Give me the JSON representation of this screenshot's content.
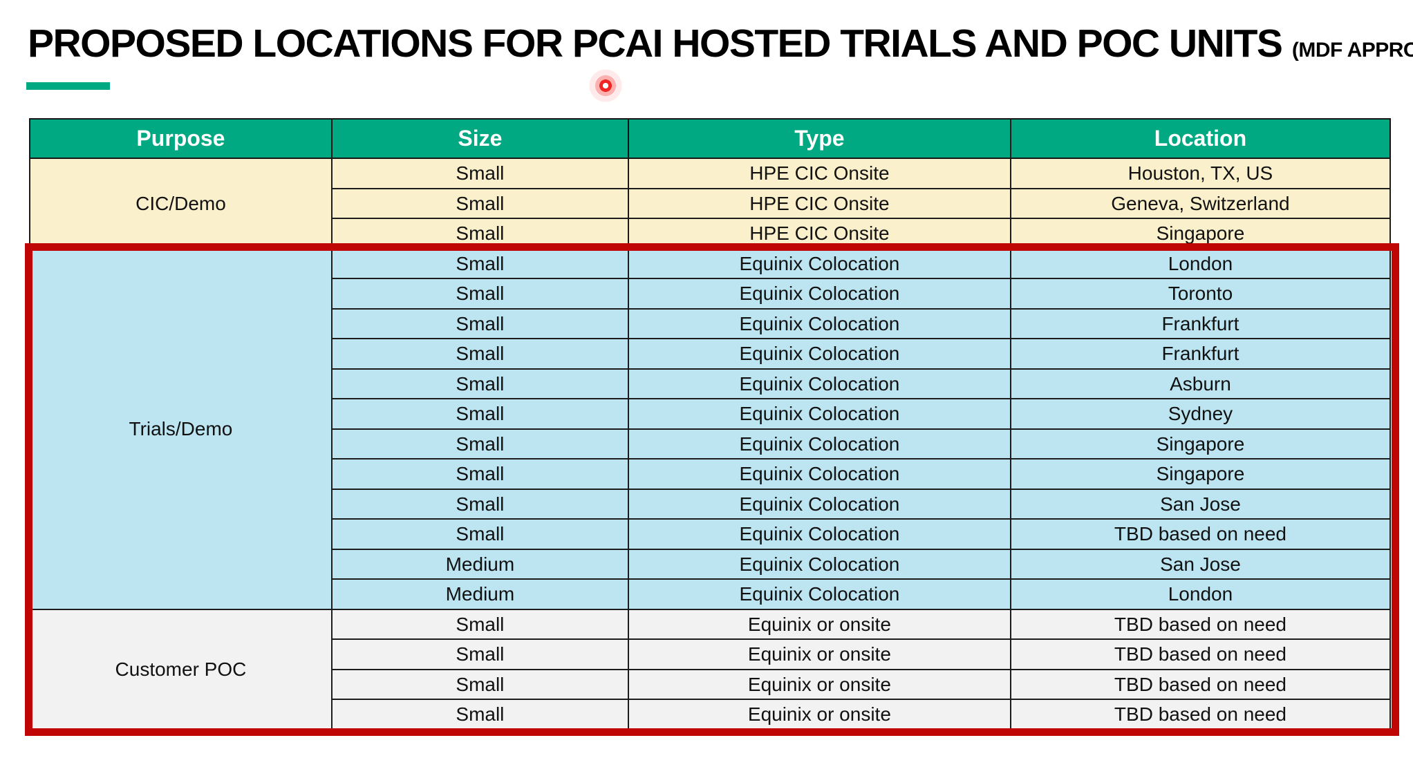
{
  "title": {
    "main": "PROPOSED LOCATIONS FOR PCAI HOSTED TRIALS AND POC UNITS",
    "suffix": "(MDF APPROVED)"
  },
  "table": {
    "headers": [
      "Purpose",
      "Size",
      "Type",
      "Location"
    ],
    "groups": [
      {
        "purpose": "CIC/Demo",
        "theme": "cream",
        "rows": [
          [
            "Small",
            "HPE CIC Onsite",
            "Houston, TX, US"
          ],
          [
            "Small",
            "HPE CIC Onsite",
            "Geneva, Switzerland"
          ],
          [
            "Small",
            "HPE CIC Onsite",
            "Singapore"
          ]
        ]
      },
      {
        "purpose": "Trials/Demo",
        "theme": "blue",
        "rows": [
          [
            "Small",
            "Equinix Colocation",
            "London"
          ],
          [
            "Small",
            "Equinix Colocation",
            "Toronto"
          ],
          [
            "Small",
            "Equinix Colocation",
            "Frankfurt"
          ],
          [
            "Small",
            "Equinix Colocation",
            "Frankfurt"
          ],
          [
            "Small",
            "Equinix Colocation",
            "Asburn"
          ],
          [
            "Small",
            "Equinix Colocation",
            "Sydney"
          ],
          [
            "Small",
            "Equinix Colocation",
            "Singapore"
          ],
          [
            "Small",
            "Equinix Colocation",
            "Singapore"
          ],
          [
            "Small",
            "Equinix Colocation",
            "San Jose"
          ],
          [
            "Small",
            "Equinix Colocation",
            "TBD based on need"
          ],
          [
            "Medium",
            "Equinix Colocation",
            "San Jose"
          ],
          [
            "Medium",
            "Equinix Colocation",
            "London"
          ]
        ]
      },
      {
        "purpose": "Customer POC",
        "theme": "gray",
        "rows": [
          [
            "Small",
            "Equinix or onsite",
            "TBD based on need"
          ],
          [
            "Small",
            "Equinix or onsite",
            "TBD based on need"
          ],
          [
            "Small",
            "Equinix or onsite",
            "TBD based on need"
          ],
          [
            "Small",
            "Equinix or onsite",
            "TBD based on need"
          ]
        ]
      }
    ]
  },
  "colors": {
    "accent": "#00A982",
    "header_bg": "#01A982",
    "cream": "#FBF0CC",
    "blue": "#BCE5F1",
    "gray": "#F2F2F2",
    "red_box": "#C00505",
    "laser": "#EE2524"
  }
}
